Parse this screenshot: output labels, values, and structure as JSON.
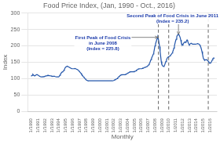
{
  "chart_data": {
    "type": "line",
    "title": "Food Price Index, (Jan, 1990 - Oct., 2016)",
    "x_label": "Monthly",
    "y_label": "Index",
    "color": "#2255aa",
    "grid": "y",
    "xlim": [
      1989.5,
      2017.0
    ],
    "xticks": [
      {
        "value": 1990,
        "label": "1/1990"
      },
      {
        "value": 1991,
        "label": "1/1991"
      },
      {
        "value": 1992,
        "label": "1/1992"
      },
      {
        "value": 1993,
        "label": "1/1993"
      },
      {
        "value": 1994,
        "label": "1/1994"
      },
      {
        "value": 1995,
        "label": "1/1995"
      },
      {
        "value": 1996,
        "label": "1/1996"
      },
      {
        "value": 1997,
        "label": "1/1997"
      },
      {
        "value": 1998,
        "label": "1/1998"
      },
      {
        "value": 1999,
        "label": "1/1999"
      },
      {
        "value": 2000,
        "label": "1/2000"
      },
      {
        "value": 2001,
        "label": "1/2001"
      },
      {
        "value": 2002,
        "label": "1/2002"
      },
      {
        "value": 2003,
        "label": "1/2003"
      },
      {
        "value": 2004,
        "label": "1/2004"
      },
      {
        "value": 2005,
        "label": "1/2005"
      },
      {
        "value": 2006,
        "label": "1/2006"
      },
      {
        "value": 2007,
        "label": "1/2007"
      },
      {
        "value": 2008,
        "label": "1/2008"
      },
      {
        "value": 2009,
        "label": "1/2009"
      },
      {
        "value": 2010,
        "label": "1/2010"
      },
      {
        "value": 2011,
        "label": "1/2011"
      },
      {
        "value": 2012,
        "label": "1/2012"
      },
      {
        "value": 2013,
        "label": "1/2013"
      },
      {
        "value": 2014,
        "label": "1/2014"
      },
      {
        "value": 2015,
        "label": "1/2015"
      },
      {
        "value": 2016,
        "label": "1/2016"
      }
    ],
    "ylim": [
      0.0,
      300.0
    ],
    "yticks": [
      0.0,
      50.0,
      100.0,
      150.0,
      200.0,
      250.0,
      300.0
    ],
    "vlines": [
      2008.5,
      2010.0,
      2015.75
    ],
    "annotations": [
      {
        "text": "First Peak of Food Crisis\nin June 2008\n(Index = 225.8)",
        "x": 2008.42,
        "y": 226,
        "color": "#1a3aaa"
      },
      {
        "text": "Second Peak of Food Crisis in June 2011\n(Index = 235.2)",
        "x": 2011.42,
        "y": 235.2,
        "color": "#1a3aaa"
      }
    ],
    "x": [
      1990,
      1990.08,
      1990.17,
      1990.25,
      1990.33,
      1990.42,
      1990.5,
      1990.58,
      1990.67,
      1990.75,
      1990.83,
      1990.92,
      1991,
      1991.08,
      1991.17,
      1991.25,
      1991.33,
      1991.42,
      1991.5,
      1991.58,
      1991.67,
      1991.75,
      1991.83,
      1991.92,
      1992,
      1992.08,
      1992.17,
      1992.25,
      1992.33,
      1992.42,
      1992.5,
      1992.58,
      1992.67,
      1992.75,
      1992.83,
      1992.92,
      1993,
      1993.08,
      1993.17,
      1993.25,
      1993.33,
      1993.42,
      1993.5,
      1993.58,
      1993.67,
      1993.75,
      1993.83,
      1993.92,
      1994,
      1994.08,
      1994.17,
      1994.25,
      1994.33,
      1994.42,
      1994.5,
      1994.58,
      1994.67,
      1994.75,
      1994.83,
      1994.92,
      1995,
      1995.08,
      1995.17,
      1995.25,
      1995.33,
      1995.42,
      1995.5,
      1995.58,
      1995.67,
      1995.75,
      1995.83,
      1995.92,
      1996,
      1996.08,
      1996.17,
      1996.25,
      1996.33,
      1996.42,
      1996.5,
      1996.58,
      1996.67,
      1996.75,
      1996.83,
      1996.92,
      1997,
      1997.08,
      1997.17,
      1997.25,
      1997.33,
      1997.42,
      1997.5,
      1997.58,
      1997.67,
      1997.75,
      1997.83,
      1997.92,
      1998,
      1998.08,
      1998.17,
      1998.25,
      1998.33,
      1998.42,
      1998.5,
      1998.58,
      1998.67,
      1998.75,
      1998.83,
      1998.92,
      1999,
      1999.08,
      1999.17,
      1999.25,
      1999.33,
      1999.42,
      1999.5,
      1999.58,
      1999.67,
      1999.75,
      1999.83,
      1999.92,
      2000,
      2000.08,
      2000.17,
      2000.25,
      2000.33,
      2000.42,
      2000.5,
      2000.58,
      2000.67,
      2000.75,
      2000.83,
      2000.92,
      2001,
      2001.08,
      2001.17,
      2001.25,
      2001.33,
      2001.42,
      2001.5,
      2001.58,
      2001.67,
      2001.75,
      2001.83,
      2001.92,
      2002,
      2002.08,
      2002.17,
      2002.25,
      2002.33,
      2002.42,
      2002.5,
      2002.58,
      2002.67,
      2002.75,
      2002.83,
      2002.92,
      2003,
      2003.08,
      2003.17,
      2003.25,
      2003.33,
      2003.42,
      2003.5,
      2003.58,
      2003.67,
      2003.75,
      2003.83,
      2003.92,
      2004,
      2004.08,
      2004.17,
      2004.25,
      2004.33,
      2004.42,
      2004.5,
      2004.58,
      2004.67,
      2004.75,
      2004.83,
      2004.92,
      2005,
      2005.08,
      2005.17,
      2005.25,
      2005.33,
      2005.42,
      2005.5,
      2005.58,
      2005.67,
      2005.75,
      2005.83,
      2005.92,
      2006,
      2006.08,
      2006.17,
      2006.25,
      2006.33,
      2006.42,
      2006.5,
      2006.58,
      2006.67,
      2006.75,
      2006.83,
      2006.92,
      2007,
      2007.08,
      2007.17,
      2007.25,
      2007.33,
      2007.42,
      2007.5,
      2007.58,
      2007.67,
      2007.75,
      2007.83,
      2007.92,
      2008,
      2008.08,
      2008.17,
      2008.25,
      2008.33,
      2008.42,
      2008.5,
      2008.58,
      2008.67,
      2008.75,
      2008.83,
      2008.92,
      2009,
      2009.08,
      2009.17,
      2009.25,
      2009.33,
      2009.42,
      2009.5,
      2009.58,
      2009.67,
      2009.75,
      2009.83,
      2009.92,
      2010,
      2010.08,
      2010.17,
      2010.25,
      2010.33,
      2010.42,
      2010.5,
      2010.58,
      2010.67,
      2010.75,
      2010.83,
      2010.92,
      2011,
      2011.08,
      2011.17,
      2011.25,
      2011.33,
      2011.42,
      2011.5,
      2011.58,
      2011.67,
      2011.75,
      2011.83,
      2011.92,
      2012,
      2012.08,
      2012.17,
      2012.25,
      2012.33,
      2012.42,
      2012.5,
      2012.58,
      2012.67,
      2012.75,
      2012.83,
      2012.92,
      2013,
      2013.08,
      2013.17,
      2013.25,
      2013.33,
      2013.42,
      2013.5,
      2013.58,
      2013.67,
      2013.75,
      2013.83,
      2013.92,
      2014,
      2014.08,
      2014.17,
      2014.25,
      2014.33,
      2014.42,
      2014.5,
      2014.58,
      2014.67,
      2014.75,
      2014.83,
      2014.92,
      2015,
      2015.08,
      2015.17,
      2015.25,
      2015.33,
      2015.42,
      2015.5,
      2015.58,
      2015.67,
      2015.75,
      2015.83,
      2015.92,
      2016,
      2016.08,
      2016.17,
      2016.25,
      2016.33,
      2016.42,
      2016.5,
      2016.58,
      2016.67
    ],
    "values": [
      107,
      109,
      110,
      113,
      111,
      110,
      108,
      108,
      110,
      112,
      112,
      112,
      110,
      109,
      108,
      107,
      106,
      105,
      105,
      105,
      105,
      106,
      106,
      106,
      107,
      107,
      108,
      108,
      109,
      110,
      110,
      109,
      109,
      109,
      108,
      108,
      107,
      107,
      107,
      107,
      107,
      107,
      106,
      106,
      105,
      105,
      105,
      105,
      105,
      107,
      110,
      113,
      116,
      118,
      120,
      121,
      122,
      125,
      128,
      132,
      135,
      136,
      137,
      138,
      137,
      136,
      135,
      134,
      133,
      132,
      131,
      130,
      130,
      130,
      130,
      130,
      131,
      131,
      130,
      129,
      128,
      127,
      126,
      124,
      122,
      120,
      118,
      116,
      113,
      111,
      108,
      106,
      104,
      102,
      100,
      98,
      96,
      95,
      94,
      93,
      93,
      93,
      93,
      93,
      93,
      93,
      93,
      93,
      93,
      93,
      93,
      93,
      93,
      93,
      93,
      93,
      93,
      93,
      93,
      93,
      93,
      93,
      93,
      93,
      93,
      93,
      93,
      93,
      93,
      93,
      93,
      93,
      93,
      93,
      93,
      93,
      93,
      93,
      93,
      93,
      93,
      93,
      93,
      93,
      94,
      95,
      96,
      97,
      98,
      99,
      100,
      102,
      104,
      106,
      107,
      109,
      110,
      111,
      112,
      112,
      112,
      112,
      112,
      112,
      112,
      113,
      114,
      115,
      116,
      117,
      118,
      119,
      120,
      121,
      121,
      121,
      121,
      121,
      121,
      121,
      122,
      122,
      123,
      124,
      126,
      127,
      128,
      129,
      130,
      130,
      130,
      130,
      130,
      130,
      131,
      132,
      132,
      133,
      134,
      134,
      135,
      136,
      137,
      138,
      140,
      142,
      145,
      148,
      153,
      158,
      162,
      166,
      170,
      175,
      180,
      190,
      200,
      206,
      212,
      218,
      222,
      225.8,
      220,
      210,
      198,
      183,
      168,
      152,
      143,
      140,
      138,
      137,
      138,
      142,
      147,
      152,
      157,
      161,
      164,
      166,
      167,
      168,
      169,
      171,
      173,
      175,
      178,
      182,
      187,
      193,
      200,
      208,
      215,
      220,
      228,
      232,
      234,
      235.2,
      233,
      230,
      225,
      218,
      210,
      205,
      202,
      205,
      208,
      210,
      212,
      212,
      210,
      215,
      218,
      215,
      210,
      205,
      203,
      205,
      207,
      208,
      207,
      206,
      205,
      205,
      205,
      205,
      205,
      205,
      205,
      206,
      207,
      207,
      206,
      205,
      203,
      200,
      196,
      190,
      183,
      174,
      165,
      160,
      157,
      156,
      157,
      158,
      158,
      157,
      155,
      153,
      150,
      148,
      147,
      148,
      150,
      153,
      157,
      161,
      163,
      163,
      162
    ]
  }
}
